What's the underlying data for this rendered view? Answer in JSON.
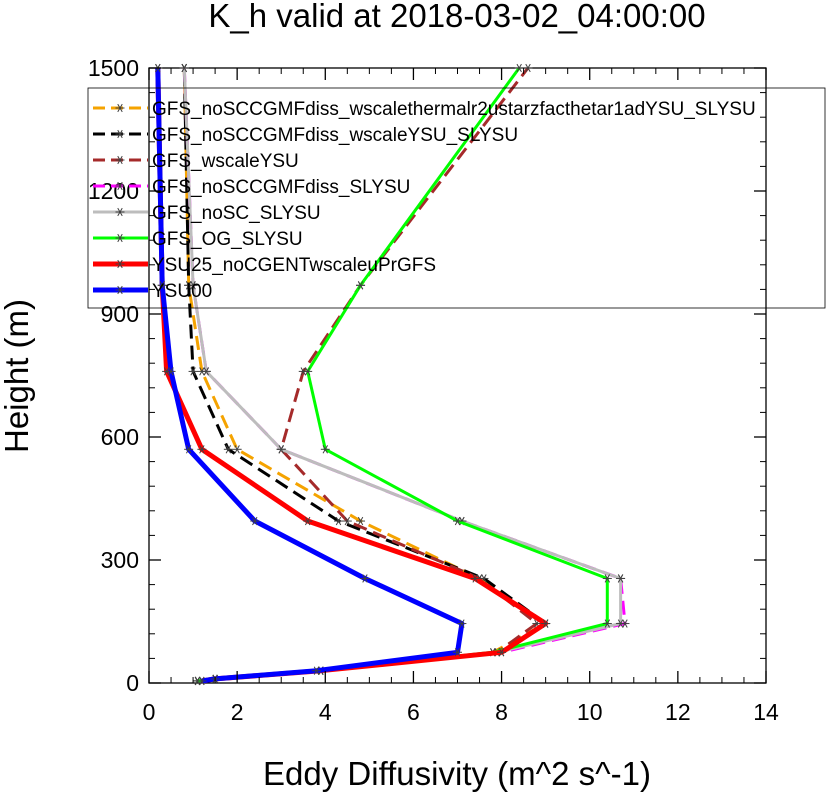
{
  "chart_data": {
    "type": "line",
    "title": "K_h valid at 2018-03-02_04:00:00",
    "xlabel": "Eddy Diffusivity (m^2 s^-1)",
    "ylabel": "Height (m)",
    "xlim": [
      0,
      14
    ],
    "ylim": [
      0,
      1500
    ],
    "xticks": [
      "0",
      "2",
      "4",
      "6",
      "8",
      "10",
      "12",
      "14"
    ],
    "yticks": [
      "0",
      "300",
      "600",
      "900",
      "1200",
      "1500"
    ],
    "grid": false,
    "legend_position": "top",
    "series": [
      {
        "name": "GFS_noSCCGMFdiss_wscalethermalr2ustarzfacthetar1adYSU_SLYSU",
        "color": "#f5a300",
        "dash": "dashed",
        "width": 3,
        "x": [
          1.1,
          1.5,
          3.9,
          7.8,
          9.0,
          7.5,
          4.8,
          2.0,
          1.2,
          0.9,
          0.8
        ],
        "y": [
          5,
          10,
          30,
          75,
          145,
          255,
          395,
          570,
          760,
          970,
          1500
        ]
      },
      {
        "name": "GFS_noSCCGMFdiss_wscaleYSU_SLYSU",
        "color": "#000000",
        "dash": "dashed",
        "width": 3,
        "x": [
          1.1,
          1.5,
          3.9,
          7.9,
          9.0,
          7.6,
          4.3,
          1.8,
          1.0,
          0.9,
          0.8
        ],
        "y": [
          5,
          10,
          30,
          75,
          145,
          255,
          395,
          570,
          760,
          970,
          1500
        ]
      },
      {
        "name": "GFS_wscaleYSU",
        "color": "#a52a2a",
        "dash": "dashed",
        "width": 3,
        "x": [
          1.1,
          1.5,
          3.9,
          7.9,
          8.8,
          7.5,
          4.5,
          3.0,
          3.5,
          4.8,
          8.6
        ],
        "y": [
          5,
          10,
          30,
          75,
          145,
          255,
          395,
          570,
          760,
          970,
          1500
        ]
      },
      {
        "name": "GFS_noSCCGMFdiss_SLYSU",
        "color": "#ff00ff",
        "dash": "dashed",
        "width": 3,
        "x": [
          1.1,
          1.5,
          3.9,
          8.0,
          10.8,
          10.7,
          7.1,
          3.0,
          1.3,
          1.0,
          0.8
        ],
        "y": [
          5,
          10,
          30,
          75,
          145,
          255,
          395,
          570,
          760,
          970,
          1500
        ]
      },
      {
        "name": "GFS_noSC_SLYSU",
        "color": "#bdbdbd",
        "dash": "solid",
        "width": 3,
        "x": [
          1.1,
          1.5,
          3.9,
          7.9,
          10.7,
          10.7,
          7.1,
          3.0,
          1.3,
          1.0,
          0.8
        ],
        "y": [
          5,
          10,
          30,
          75,
          145,
          255,
          395,
          570,
          760,
          970,
          1500
        ]
      },
      {
        "name": "GFS_OG_SLYSU",
        "color": "#00ff00",
        "dash": "solid",
        "width": 3,
        "x": [
          1.1,
          1.5,
          3.9,
          7.8,
          10.4,
          10.4,
          7.0,
          4.0,
          3.6,
          4.8,
          8.4
        ],
        "y": [
          5,
          10,
          30,
          75,
          145,
          255,
          395,
          570,
          760,
          970,
          1500
        ]
      },
      {
        "name": "YSU25_noCGENTwscaleuPrGFS",
        "color": "#ff0000",
        "dash": "solid",
        "width": 5,
        "x": [
          1.2,
          1.5,
          3.9,
          8.0,
          9.0,
          7.4,
          3.6,
          1.2,
          0.4,
          0.3,
          0.2
        ],
        "y": [
          5,
          10,
          30,
          75,
          145,
          255,
          395,
          570,
          760,
          970,
          1500
        ]
      },
      {
        "name": "YSU00",
        "color": "#0000ff",
        "dash": "solid",
        "width": 5,
        "x": [
          1.2,
          1.5,
          3.8,
          7.0,
          7.1,
          4.9,
          2.4,
          0.9,
          0.5,
          0.3,
          0.2
        ],
        "y": [
          5,
          10,
          30,
          75,
          145,
          255,
          395,
          570,
          760,
          970,
          1500
        ]
      }
    ]
  }
}
